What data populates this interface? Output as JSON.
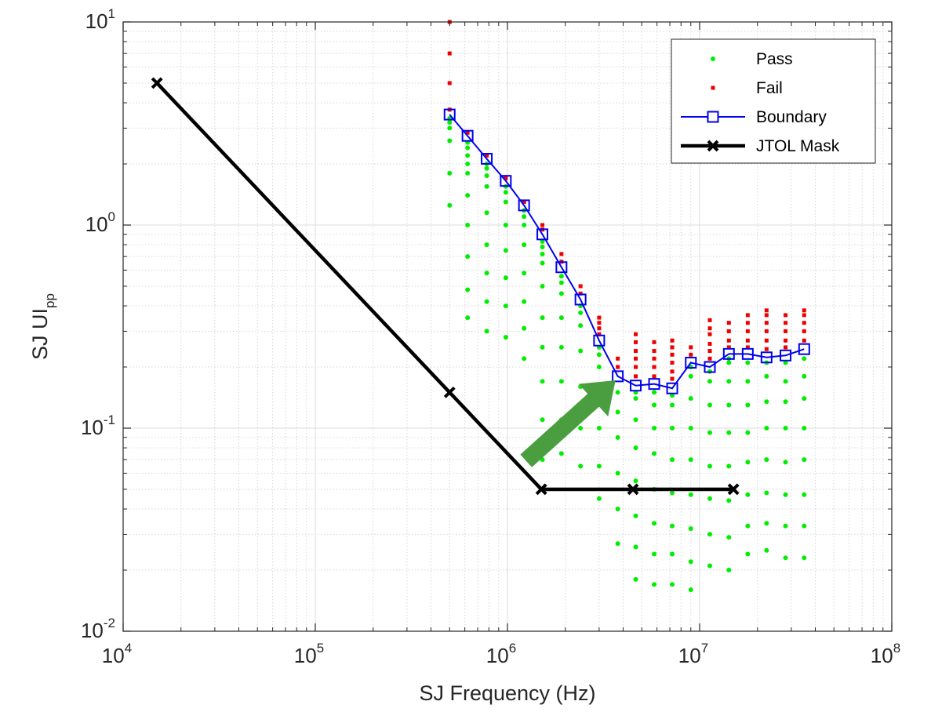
{
  "chart_data": {
    "type": "scatter",
    "xlabel": "SJ Frequency (Hz)",
    "ylabel": {
      "base": "SJ UI",
      "subscript": "pp"
    },
    "x_scale": "log",
    "y_scale": "log",
    "xlim": [
      10000,
      100000000
    ],
    "ylim": [
      0.01,
      10
    ],
    "grid": true,
    "minor_grid": true,
    "legend_position": "top-right",
    "x_ticks": [
      {
        "base": "10",
        "exp": "4",
        "value": 10000
      },
      {
        "base": "10",
        "exp": "5",
        "value": 100000
      },
      {
        "base": "10",
        "exp": "6",
        "value": 1000000
      },
      {
        "base": "10",
        "exp": "7",
        "value": 10000000
      },
      {
        "base": "10",
        "exp": "8",
        "value": 100000000
      }
    ],
    "y_ticks": [
      {
        "base": "10",
        "exp": "-2",
        "value": 0.01
      },
      {
        "base": "10",
        "exp": "-1",
        "value": 0.1
      },
      {
        "base": "10",
        "exp": "0",
        "value": 1
      },
      {
        "base": "10",
        "exp": "1",
        "value": 10
      }
    ],
    "series": [
      {
        "name": "Pass",
        "color": "#00ee00",
        "marker": "dot",
        "columns": [
          {
            "x": 500000,
            "y": [
              1.25,
              1.8,
              2.6,
              3.0,
              3.2,
              3.35
            ]
          },
          {
            "x": 620000,
            "y": [
              0.35,
              0.48,
              0.7,
              1.0,
              1.4,
              1.8,
              2.0,
              2.2,
              2.4,
              2.55
            ]
          },
          {
            "x": 780000,
            "y": [
              0.3,
              0.42,
              0.58,
              0.8,
              1.15,
              1.55,
              1.75,
              1.9,
              2.0
            ]
          },
          {
            "x": 980000,
            "y": [
              0.28,
              0.4,
              0.55,
              0.75,
              1.0,
              1.3,
              1.45,
              1.55
            ]
          },
          {
            "x": 1220000,
            "y": [
              0.22,
              0.31,
              0.42,
              0.58,
              0.8,
              1.0,
              1.1,
              1.18
            ]
          },
          {
            "x": 1520000,
            "y": [
              0.07,
              0.11,
              0.17,
              0.25,
              0.35,
              0.5,
              0.65,
              0.72,
              0.78,
              0.83
            ]
          },
          {
            "x": 1910000,
            "y": [
              0.075,
              0.11,
              0.17,
              0.25,
              0.35,
              0.46,
              0.52,
              0.56
            ]
          },
          {
            "x": 2400000,
            "y": [
              0.065,
              0.1,
              0.16,
              0.24,
              0.32,
              0.37,
              0.4
            ]
          },
          {
            "x": 3000000,
            "y": [
              0.045,
              0.065,
              0.1,
              0.16,
              0.2,
              0.23,
              0.25
            ]
          },
          {
            "x": 3750000,
            "y": [
              0.027,
              0.04,
              0.06,
              0.09,
              0.12,
              0.15
            ]
          },
          {
            "x": 4650000,
            "y": [
              0.018,
              0.026,
              0.037,
              0.055,
              0.08,
              0.11,
              0.14,
              0.15
            ]
          },
          {
            "x": 5800000,
            "y": [
              0.017,
              0.024,
              0.034,
              0.05,
              0.075,
              0.1,
              0.13,
              0.15
            ]
          },
          {
            "x": 7200000,
            "y": [
              0.017,
              0.024,
              0.033,
              0.048,
              0.07,
              0.1,
              0.13,
              0.145
            ]
          },
          {
            "x": 9000000,
            "y": [
              0.016,
              0.022,
              0.032,
              0.047,
              0.07,
              0.1,
              0.14,
              0.18,
              0.2
            ]
          },
          {
            "x": 11300000,
            "y": [
              0.021,
              0.03,
              0.045,
              0.065,
              0.095,
              0.13,
              0.17,
              0.19
            ]
          },
          {
            "x": 14200000,
            "y": [
              0.02,
              0.029,
              0.044,
              0.065,
              0.095,
              0.13,
              0.17,
              0.21,
              0.22
            ]
          },
          {
            "x": 17800000,
            "y": [
              0.024,
              0.033,
              0.047,
              0.068,
              0.095,
              0.13,
              0.17,
              0.21
            ]
          },
          {
            "x": 22300000,
            "y": [
              0.025,
              0.034,
              0.048,
              0.07,
              0.1,
              0.135,
              0.18,
              0.21
            ]
          },
          {
            "x": 28000000,
            "y": [
              0.023,
              0.033,
              0.047,
              0.068,
              0.1,
              0.135,
              0.17,
              0.21
            ]
          },
          {
            "x": 35000000,
            "y": [
              0.023,
              0.033,
              0.047,
              0.07,
              0.1,
              0.14,
              0.18,
              0.22
            ]
          }
        ]
      },
      {
        "name": "Fail",
        "color": "#ee0000",
        "marker": "square",
        "columns": [
          {
            "x": 500000,
            "y": [
              3.7,
              5.0,
              7.0,
              10.0
            ]
          },
          {
            "x": 620000,
            "y": [
              2.85
            ]
          },
          {
            "x": 780000,
            "y": [
              2.2
            ]
          },
          {
            "x": 980000,
            "y": [
              1.7
            ]
          },
          {
            "x": 1220000,
            "y": [
              1.3
            ]
          },
          {
            "x": 1520000,
            "y": [
              0.95,
              1.0
            ]
          },
          {
            "x": 1910000,
            "y": [
              0.66,
              0.72
            ]
          },
          {
            "x": 2400000,
            "y": [
              0.46,
              0.5
            ]
          },
          {
            "x": 3000000,
            "y": [
              0.29,
              0.31,
              0.33,
              0.35
            ]
          },
          {
            "x": 3750000,
            "y": [
              0.2,
              0.22
            ]
          },
          {
            "x": 4650000,
            "y": [
              0.18,
              0.2,
              0.22,
              0.24,
              0.265,
              0.29
            ]
          },
          {
            "x": 5800000,
            "y": [
              0.18,
              0.2,
              0.22,
              0.24,
              0.265
            ]
          },
          {
            "x": 7200000,
            "y": [
              0.175,
              0.19,
              0.21,
              0.23,
              0.25,
              0.27
            ]
          },
          {
            "x": 9000000,
            "y": [
              0.23,
              0.25
            ]
          },
          {
            "x": 11300000,
            "y": [
              0.22,
              0.24,
              0.26,
              0.29,
              0.31,
              0.34
            ]
          },
          {
            "x": 14200000,
            "y": [
              0.25,
              0.27,
              0.3,
              0.33
            ]
          },
          {
            "x": 17800000,
            "y": [
              0.25,
              0.27,
              0.3,
              0.33,
              0.36
            ]
          },
          {
            "x": 22300000,
            "y": [
              0.245,
              0.27,
              0.3,
              0.33,
              0.36,
              0.38
            ]
          },
          {
            "x": 28000000,
            "y": [
              0.25,
              0.27,
              0.3,
              0.33,
              0.36
            ]
          },
          {
            "x": 35000000,
            "y": [
              0.27,
              0.3,
              0.33,
              0.36,
              0.38
            ]
          }
        ]
      },
      {
        "name": "Boundary",
        "color": "#0000ee",
        "marker": "square-open",
        "x": [
          500000,
          620000,
          780000,
          980000,
          1220000,
          1520000,
          1910000,
          2400000,
          3000000,
          3750000,
          4650000,
          5800000,
          7200000,
          9000000,
          11300000,
          14200000,
          17800000,
          22300000,
          28000000,
          35000000
        ],
        "y": [
          3.5,
          2.75,
          2.12,
          1.65,
          1.25,
          0.9,
          0.62,
          0.43,
          0.27,
          0.18,
          0.162,
          0.165,
          0.157,
          0.21,
          0.2,
          0.232,
          0.232,
          0.223,
          0.228,
          0.245
        ]
      },
      {
        "name": "JTOL Mask",
        "color": "#000000",
        "marker": "x",
        "x": [
          15000,
          500000,
          1500000,
          4500000,
          15000000
        ],
        "y": [
          5.0,
          0.15,
          0.05,
          0.05,
          0.05
        ]
      }
    ],
    "annotations": [
      {
        "type": "arrow",
        "color": "#4a9e3f",
        "from": {
          "x": 1250000,
          "y": 0.069
        },
        "to": {
          "x": 3650000,
          "y": 0.172
        }
      }
    ]
  }
}
